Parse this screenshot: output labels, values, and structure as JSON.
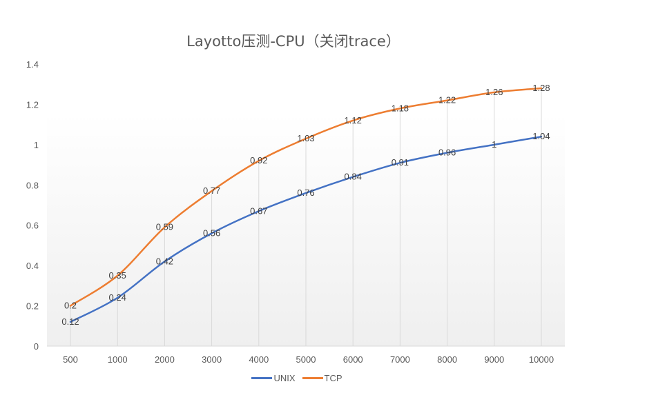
{
  "chart_data": {
    "type": "line",
    "title": "Layotto压测-CPU（关闭trace）",
    "xlabel": "",
    "ylabel": "",
    "categories": [
      "500",
      "1000",
      "2000",
      "3000",
      "4000",
      "5000",
      "6000",
      "7000",
      "8000",
      "9000",
      "10000"
    ],
    "series": [
      {
        "name": "UNIX",
        "color": "#4472C4",
        "values": [
          0.12,
          0.24,
          0.42,
          0.56,
          0.67,
          0.76,
          0.84,
          0.91,
          0.96,
          1,
          1.04
        ]
      },
      {
        "name": "TCP",
        "color": "#ED7D31",
        "values": [
          0.2,
          0.35,
          0.59,
          0.77,
          0.92,
          1.03,
          1.12,
          1.18,
          1.22,
          1.26,
          1.28
        ]
      }
    ],
    "ylim": [
      0,
      1.4
    ],
    "yticks": [
      "0",
      "0.2",
      "0.4",
      "0.6",
      "0.8",
      "1",
      "1.2",
      "1.4"
    ],
    "grid": false,
    "drop_lines": true,
    "data_labels": true,
    "legend_position": "bottom"
  },
  "legend": [
    {
      "label": "UNIX",
      "color": "#4472C4"
    },
    {
      "label": "TCP",
      "color": "#ED7D31"
    }
  ]
}
